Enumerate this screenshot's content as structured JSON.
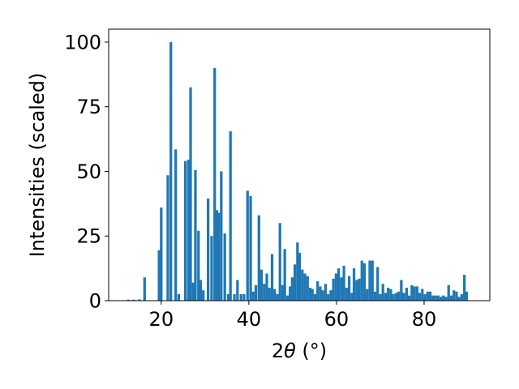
{
  "chart_data": {
    "type": "bar",
    "xlabel_parts": {
      "prefix": "2",
      "theta": "θ",
      "unit": " (°)"
    },
    "ylabel": "Intensities (scaled)",
    "xlim": [
      8,
      95
    ],
    "ylim": [
      0,
      105
    ],
    "x_ticks": [
      20,
      40,
      60,
      80
    ],
    "y_ticks": [
      0,
      25,
      50,
      75,
      100
    ],
    "grid": false,
    "bar_width": 0.6,
    "color": "#1f77b4",
    "bars": [
      {
        "x": 12.5,
        "y": 0.4
      },
      {
        "x": 13.7,
        "y": 0.4
      },
      {
        "x": 15.0,
        "y": 0.5
      },
      {
        "x": 16.2,
        "y": 9.0
      },
      {
        "x": 19.5,
        "y": 19.5
      },
      {
        "x": 20.0,
        "y": 36.0
      },
      {
        "x": 21.5,
        "y": 48.5
      },
      {
        "x": 22.2,
        "y": 100.0
      },
      {
        "x": 23.3,
        "y": 58.5
      },
      {
        "x": 24.0,
        "y": 2.5
      },
      {
        "x": 25.5,
        "y": 54.0
      },
      {
        "x": 26.2,
        "y": 54.5
      },
      {
        "x": 26.7,
        "y": 82.5
      },
      {
        "x": 27.3,
        "y": 7.0
      },
      {
        "x": 27.8,
        "y": 50.5
      },
      {
        "x": 28.5,
        "y": 27.0
      },
      {
        "x": 29.0,
        "y": 8.0
      },
      {
        "x": 29.6,
        "y": 4.0
      },
      {
        "x": 30.7,
        "y": 39.5
      },
      {
        "x": 31.5,
        "y": 25.0
      },
      {
        "x": 32.2,
        "y": 90.0
      },
      {
        "x": 32.7,
        "y": 35.0
      },
      {
        "x": 33.1,
        "y": 34.0
      },
      {
        "x": 33.7,
        "y": 50.0
      },
      {
        "x": 34.5,
        "y": 26.0
      },
      {
        "x": 35.3,
        "y": 2.5
      },
      {
        "x": 35.8,
        "y": 65.5
      },
      {
        "x": 36.7,
        "y": 2.5
      },
      {
        "x": 37.4,
        "y": 8.0
      },
      {
        "x": 38.2,
        "y": 2.5
      },
      {
        "x": 38.9,
        "y": 2.5
      },
      {
        "x": 39.7,
        "y": 42.5
      },
      {
        "x": 40.4,
        "y": 40.5
      },
      {
        "x": 41.0,
        "y": 3.5
      },
      {
        "x": 41.6,
        "y": 6.0
      },
      {
        "x": 42.3,
        "y": 33.0
      },
      {
        "x": 42.9,
        "y": 12.0
      },
      {
        "x": 43.5,
        "y": 6.5
      },
      {
        "x": 44.1,
        "y": 10.5
      },
      {
        "x": 44.7,
        "y": 5.0
      },
      {
        "x": 45.3,
        "y": 18.0
      },
      {
        "x": 45.9,
        "y": 4.5
      },
      {
        "x": 46.5,
        "y": 2.5
      },
      {
        "x": 47.1,
        "y": 30.0
      },
      {
        "x": 47.7,
        "y": 6.0
      },
      {
        "x": 48.2,
        "y": 20.0
      },
      {
        "x": 48.8,
        "y": 2.0
      },
      {
        "x": 49.4,
        "y": 5.5
      },
      {
        "x": 49.9,
        "y": 9.0
      },
      {
        "x": 50.5,
        "y": 14.0
      },
      {
        "x": 51.1,
        "y": 22.5
      },
      {
        "x": 51.6,
        "y": 18.5
      },
      {
        "x": 52.2,
        "y": 12.0
      },
      {
        "x": 52.8,
        "y": 10.5
      },
      {
        "x": 53.4,
        "y": 9.5
      },
      {
        "x": 54.0,
        "y": 5.0
      },
      {
        "x": 54.5,
        "y": 4.5
      },
      {
        "x": 55.1,
        "y": 2.5
      },
      {
        "x": 55.7,
        "y": 7.5
      },
      {
        "x": 56.3,
        "y": 5.5
      },
      {
        "x": 56.9,
        "y": 4.0
      },
      {
        "x": 57.5,
        "y": 6.5
      },
      {
        "x": 58.1,
        "y": 2.5
      },
      {
        "x": 58.7,
        "y": 4.0
      },
      {
        "x": 59.3,
        "y": 8.5
      },
      {
        "x": 59.9,
        "y": 10.5
      },
      {
        "x": 60.5,
        "y": 12.5
      },
      {
        "x": 61.1,
        "y": 9.0
      },
      {
        "x": 61.7,
        "y": 13.5
      },
      {
        "x": 62.3,
        "y": 5.0
      },
      {
        "x": 62.9,
        "y": 9.5
      },
      {
        "x": 63.5,
        "y": 3.0
      },
      {
        "x": 64.0,
        "y": 12.5
      },
      {
        "x": 64.6,
        "y": 8.0
      },
      {
        "x": 65.2,
        "y": 8.5
      },
      {
        "x": 65.8,
        "y": 15.5
      },
      {
        "x": 66.4,
        "y": 14.5
      },
      {
        "x": 67.0,
        "y": 4.5
      },
      {
        "x": 67.6,
        "y": 15.5
      },
      {
        "x": 68.2,
        "y": 15.5
      },
      {
        "x": 68.8,
        "y": 3.5
      },
      {
        "x": 69.4,
        "y": 13.0
      },
      {
        "x": 70.0,
        "y": 2.5
      },
      {
        "x": 70.6,
        "y": 6.5
      },
      {
        "x": 71.2,
        "y": 3.0
      },
      {
        "x": 71.8,
        "y": 5.0
      },
      {
        "x": 72.4,
        "y": 4.5
      },
      {
        "x": 73.0,
        "y": 2.5
      },
      {
        "x": 73.6,
        "y": 3.0
      },
      {
        "x": 74.2,
        "y": 3.5
      },
      {
        "x": 74.8,
        "y": 8.0
      },
      {
        "x": 75.4,
        "y": 3.0
      },
      {
        "x": 76.0,
        "y": 5.0
      },
      {
        "x": 76.6,
        "y": 2.0
      },
      {
        "x": 77.2,
        "y": 6.0
      },
      {
        "x": 77.8,
        "y": 5.5
      },
      {
        "x": 78.4,
        "y": 5.5
      },
      {
        "x": 79.0,
        "y": 3.0
      },
      {
        "x": 79.6,
        "y": 4.5
      },
      {
        "x": 80.2,
        "y": 2.5
      },
      {
        "x": 80.8,
        "y": 3.5
      },
      {
        "x": 81.4,
        "y": 3.5
      },
      {
        "x": 82.0,
        "y": 2.0
      },
      {
        "x": 82.6,
        "y": 2.0
      },
      {
        "x": 83.2,
        "y": 2.0
      },
      {
        "x": 83.8,
        "y": 1.5
      },
      {
        "x": 84.4,
        "y": 2.0
      },
      {
        "x": 85.0,
        "y": 1.5
      },
      {
        "x": 85.6,
        "y": 6.0
      },
      {
        "x": 86.2,
        "y": 2.0
      },
      {
        "x": 86.8,
        "y": 4.0
      },
      {
        "x": 87.4,
        "y": 3.5
      },
      {
        "x": 88.0,
        "y": 1.5
      },
      {
        "x": 88.6,
        "y": 2.5
      },
      {
        "x": 89.2,
        "y": 10.0
      },
      {
        "x": 89.7,
        "y": 3.5
      }
    ]
  }
}
